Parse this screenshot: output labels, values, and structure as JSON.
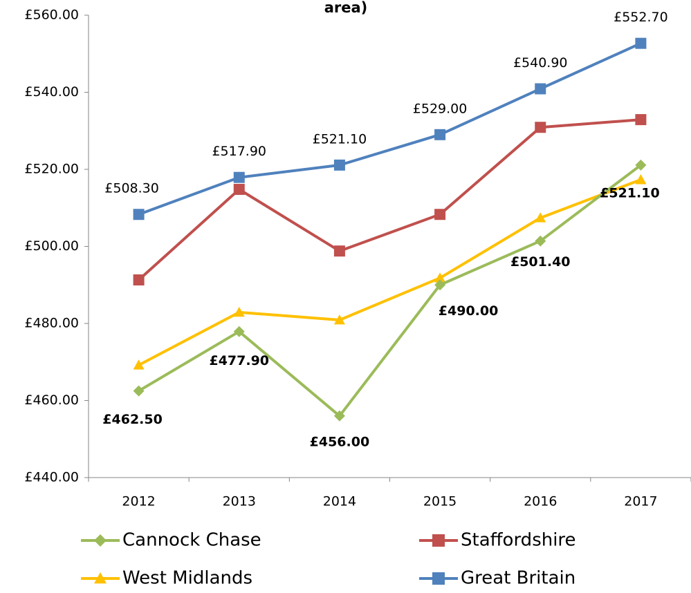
{
  "chart_data": {
    "type": "line",
    "title": "area)",
    "categories": [
      "2012",
      "2013",
      "2014",
      "2015",
      "2016",
      "2017"
    ],
    "series": [
      {
        "name": "Cannock Chase",
        "color": "#9bbb59",
        "marker": "diamond",
        "values": [
          462.5,
          477.9,
          456.0,
          490.0,
          501.4,
          521.1
        ],
        "value_labels": [
          "£462.50",
          "£477.90",
          "£456.00",
          "£490.00",
          "£501.40",
          "£521.10"
        ]
      },
      {
        "name": "Staffordshire",
        "color": "#c0504d",
        "marker": "square",
        "values": [
          491.3,
          514.8,
          498.8,
          508.3,
          530.9,
          532.9
        ]
      },
      {
        "name": "West Midlands",
        "color": "#ffc000",
        "marker": "triangle",
        "values": [
          469.2,
          482.9,
          480.9,
          491.8,
          507.4,
          517.3
        ]
      },
      {
        "name": "Great Britain",
        "color": "#4f81bd",
        "marker": "square",
        "values": [
          508.3,
          517.9,
          521.1,
          529.0,
          540.9,
          552.7
        ],
        "value_labels": [
          "£508.30",
          "£517.90",
          "£521.10",
          "£529.00",
          "£540.90",
          "£552.70"
        ]
      }
    ],
    "ylim": [
      440,
      560
    ],
    "yticks": [
      {
        "value": 440,
        "label": "£440.00"
      },
      {
        "value": 460,
        "label": "£460.00"
      },
      {
        "value": 480,
        "label": "£480.00"
      },
      {
        "value": 500,
        "label": "£500.00"
      },
      {
        "value": 520,
        "label": "£520.00"
      },
      {
        "value": 540,
        "label": "£540.00"
      },
      {
        "value": 560,
        "label": "£560.00"
      }
    ],
    "grid": false,
    "legend": "bottom"
  }
}
